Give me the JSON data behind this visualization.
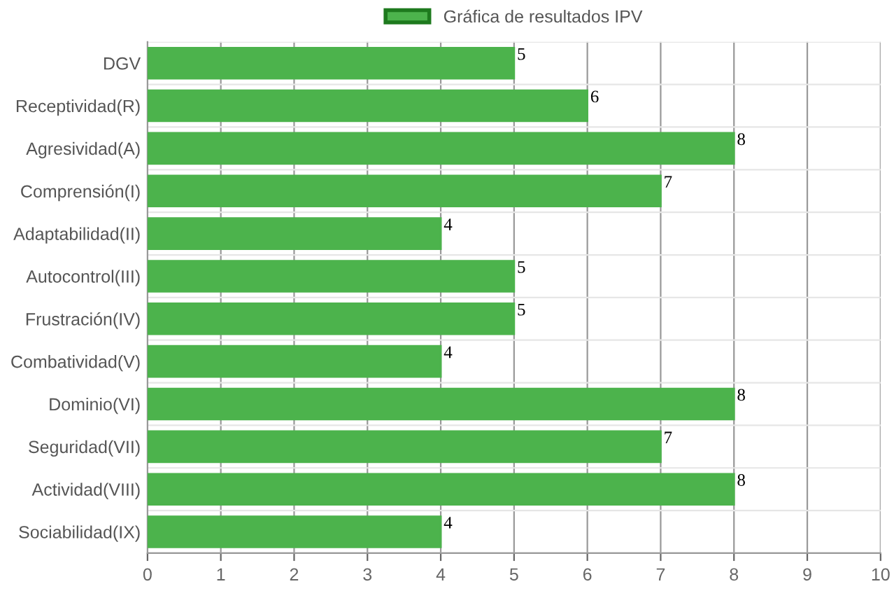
{
  "chart_data": {
    "type": "bar",
    "orientation": "horizontal",
    "categories": [
      "DGV",
      "Receptividad(R)",
      "Agresividad(A)",
      "Comprensión(I)",
      "Adaptabilidad(II)",
      "Autocontrol(III)",
      "Frustración(IV)",
      "Combatividad(V)",
      "Dominio(VI)",
      "Seguridad(VII)",
      "Actividad(VIII)",
      "Sociabilidad(IX)"
    ],
    "series": [
      {
        "name": "Gráfica de resultados IPV",
        "color": "#4cb34c",
        "values": [
          5,
          6,
          8,
          7,
          4,
          5,
          5,
          4,
          8,
          7,
          8,
          4
        ]
      }
    ],
    "xlim": [
      0,
      10
    ],
    "xticks": [
      0,
      1,
      2,
      3,
      4,
      5,
      6,
      7,
      8,
      9,
      10
    ],
    "grid": true,
    "legend": "top",
    "data_labels": true
  }
}
